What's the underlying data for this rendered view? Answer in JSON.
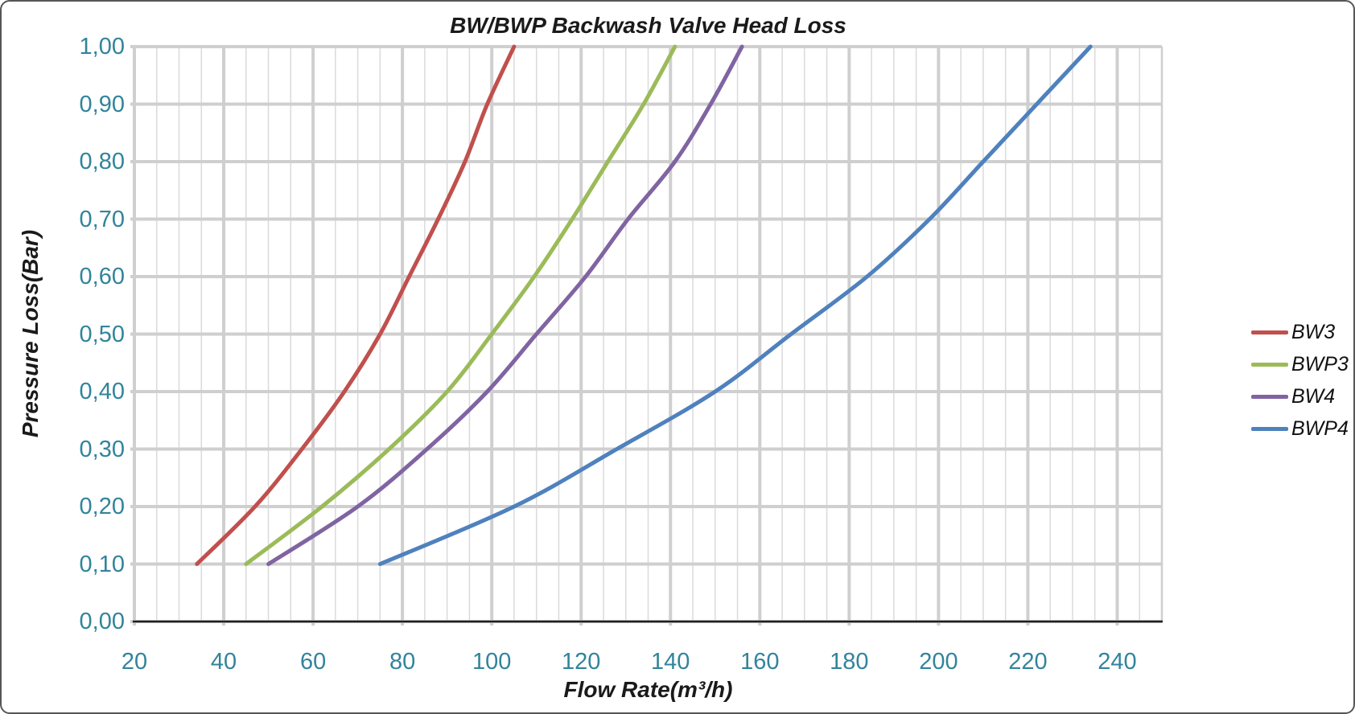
{
  "window": {
    "background": "#ffffff",
    "border_color": "#565656"
  },
  "chart_data": {
    "type": "line",
    "title": "BW/BWP Backwash Valve Head Loss",
    "xlabel": "Flow Rate(m³/h)",
    "ylabel": "Pressure Loss(Bar)",
    "xlim": [
      20,
      250
    ],
    "ylim": [
      0.0,
      1.0
    ],
    "x_major_tick_step": 20,
    "x_minor_tick_step": 5,
    "y_major_tick_step": 0.1,
    "x_tick_labels": [
      "20",
      "40",
      "60",
      "80",
      "100",
      "120",
      "140",
      "160",
      "180",
      "200",
      "220",
      "240"
    ],
    "x_tick_values": [
      20,
      40,
      60,
      80,
      100,
      120,
      140,
      160,
      180,
      200,
      220,
      240
    ],
    "y_tick_labels": [
      "0,00",
      "0,10",
      "0,20",
      "0,30",
      "0,40",
      "0,50",
      "0,60",
      "0,70",
      "0,80",
      "0,90",
      "1,00"
    ],
    "y_tick_values": [
      0.0,
      0.1,
      0.2,
      0.3,
      0.4,
      0.5,
      0.6,
      0.7,
      0.8,
      0.9,
      1.0
    ],
    "grid": "on",
    "tick_label_color": "#31849B",
    "grid_minor_color": "#DADADA",
    "grid_major_color": "#CFCFCF",
    "axis_line_color": "#1F1F1F",
    "legend_position": "right",
    "series": [
      {
        "name": "BW3",
        "color": "#C0504D",
        "points": [
          [
            34,
            0.1
          ],
          [
            47,
            0.2
          ],
          [
            57.5,
            0.3
          ],
          [
            67,
            0.4
          ],
          [
            75,
            0.5
          ],
          [
            81.5,
            0.6
          ],
          [
            88,
            0.7
          ],
          [
            94,
            0.8
          ],
          [
            99,
            0.9
          ],
          [
            105,
            1.0
          ]
        ]
      },
      {
        "name": "BWP3",
        "color": "#9BBB59",
        "points": [
          [
            45,
            0.1
          ],
          [
            62,
            0.2
          ],
          [
            77,
            0.3
          ],
          [
            90,
            0.4
          ],
          [
            100,
            0.5
          ],
          [
            109.5,
            0.6
          ],
          [
            118,
            0.7
          ],
          [
            126,
            0.8
          ],
          [
            134,
            0.9
          ],
          [
            141,
            1.0
          ]
        ]
      },
      {
        "name": "BW4",
        "color": "#8064A2",
        "points": [
          [
            50,
            0.1
          ],
          [
            70,
            0.2
          ],
          [
            85.5,
            0.3
          ],
          [
            99,
            0.4
          ],
          [
            110,
            0.5
          ],
          [
            121,
            0.6
          ],
          [
            130.5,
            0.7
          ],
          [
            141,
            0.8
          ],
          [
            149,
            0.9
          ],
          [
            156,
            1.0
          ]
        ]
      },
      {
        "name": "BWP4",
        "color": "#4F81BD",
        "points": [
          [
            75,
            0.1
          ],
          [
            105,
            0.2
          ],
          [
            128,
            0.3
          ],
          [
            150,
            0.4
          ],
          [
            167,
            0.5
          ],
          [
            184,
            0.6
          ],
          [
            198,
            0.7
          ],
          [
            210,
            0.8
          ],
          [
            222,
            0.9
          ],
          [
            234,
            1.0
          ]
        ]
      }
    ]
  }
}
